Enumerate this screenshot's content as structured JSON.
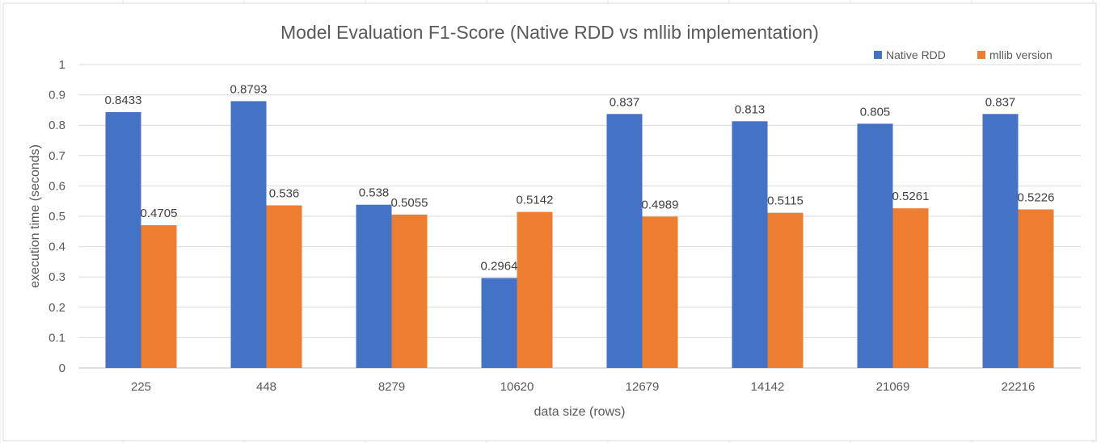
{
  "chart_data": {
    "type": "bar",
    "title": "Model Evaluation F1-Score (Native RDD vs mllib implementation)",
    "xlabel": "data size (rows)",
    "ylabel": "execution time (seconds)",
    "ylim": [
      0,
      1
    ],
    "yticks": [
      "0",
      "0.1",
      "0.2",
      "0.3",
      "0.4",
      "0.5",
      "0.6",
      "0.7",
      "0.8",
      "0.9",
      "1"
    ],
    "grid": true,
    "legend_position": "top-right",
    "categories": [
      "225",
      "448",
      "8279",
      "10620",
      "12679",
      "14142",
      "21069",
      "22216"
    ],
    "series": [
      {
        "name": "Native RDD",
        "color": "#4472C4",
        "values": [
          0.8433,
          0.8793,
          0.538,
          0.2964,
          0.837,
          0.813,
          0.805,
          0.837
        ],
        "labels": [
          "0.8433",
          "0.8793",
          "0.538",
          "0.2964",
          "0.837",
          "0.813",
          "0.805",
          "0.837"
        ]
      },
      {
        "name": "mllib version",
        "color": "#ED7D31",
        "values": [
          0.4705,
          0.536,
          0.5055,
          0.5142,
          0.4989,
          0.5115,
          0.5261,
          0.5226
        ],
        "labels": [
          "0.4705",
          "0.536",
          "0.5055",
          "0.5142",
          "0.4989",
          "0.5115",
          "0.5261",
          "0.5226"
        ]
      }
    ]
  }
}
